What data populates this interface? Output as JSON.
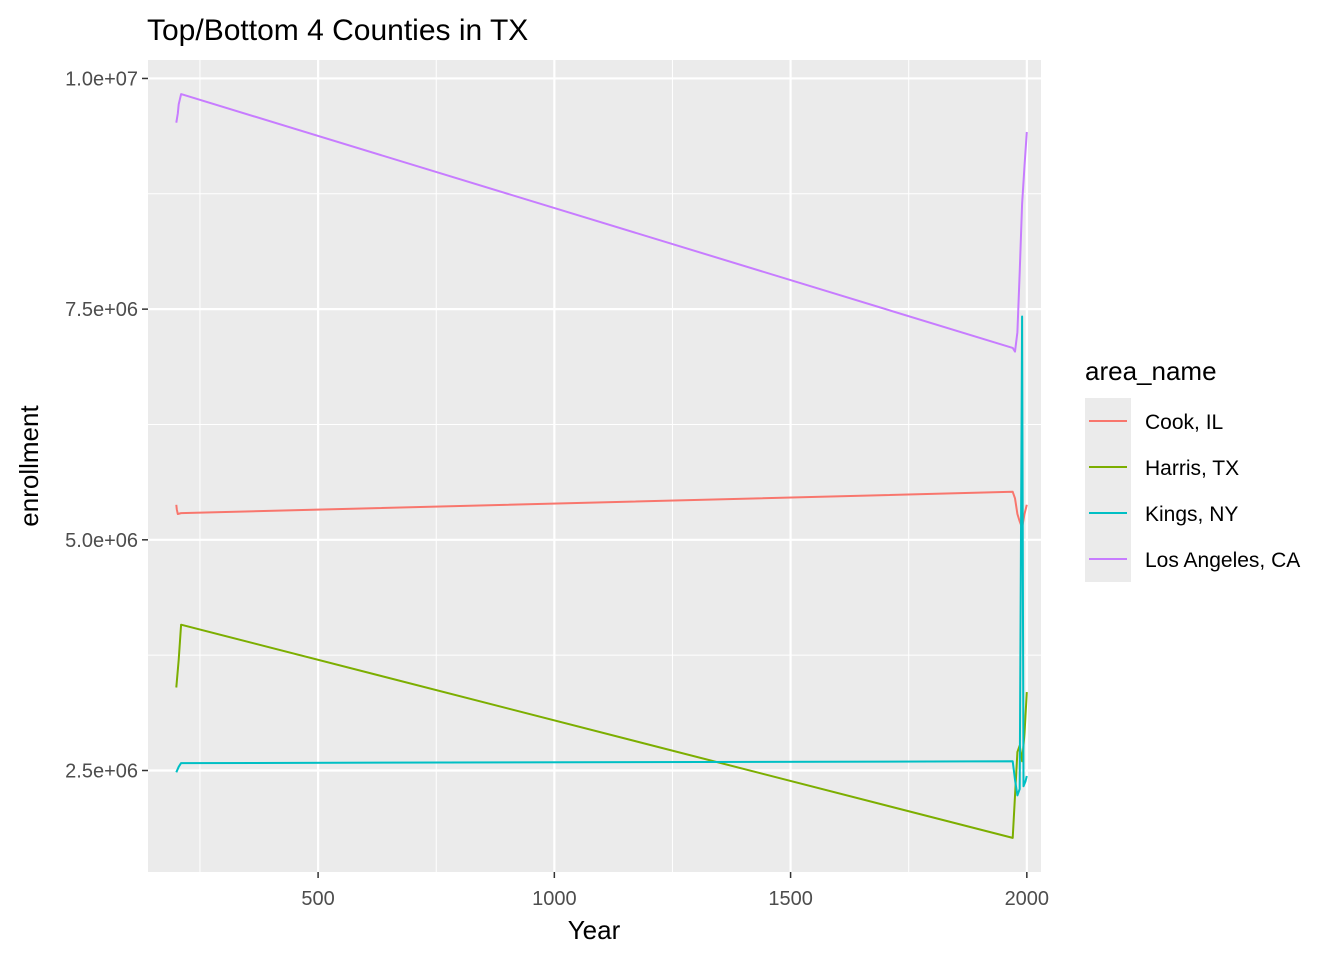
{
  "chart_data": {
    "type": "line",
    "title": "Top/Bottom 4 Counties in TX",
    "xlabel": "Year",
    "ylabel": "enrollment",
    "xlim": [
      140,
      2030
    ],
    "ylim": [
      1400000,
      10200000
    ],
    "x_ticks": [
      500,
      1000,
      1500,
      2000
    ],
    "x_tick_labels": [
      "500",
      "1000",
      "1500",
      "2000"
    ],
    "y_ticks": [
      2500000,
      5000000,
      7500000,
      10000000
    ],
    "y_tick_labels": [
      "2.5e+06",
      "5.0e+06",
      "7.5e+06",
      "1.0e+07"
    ],
    "grid": true,
    "legend": {
      "title": "area_name",
      "position": "right"
    },
    "series": [
      {
        "name": "Cook, IL",
        "color": "#F8766D",
        "points": [
          [
            200,
            5380000
          ],
          [
            201,
            5330000
          ],
          [
            203,
            5280000
          ],
          [
            210,
            5290000
          ],
          [
            1970,
            5520000
          ],
          [
            1975,
            5450000
          ],
          [
            1980,
            5280000
          ],
          [
            1985,
            5200000
          ],
          [
            1990,
            5130000
          ],
          [
            1995,
            5280000
          ],
          [
            2000,
            5380000
          ]
        ]
      },
      {
        "name": "Harris, TX",
        "color": "#7CAE00",
        "points": [
          [
            200,
            3400000
          ],
          [
            205,
            3700000
          ],
          [
            210,
            4080000
          ],
          [
            1970,
            1770000
          ],
          [
            1980,
            2700000
          ],
          [
            1985,
            2770000
          ],
          [
            1990,
            2600000
          ],
          [
            1995,
            2900000
          ],
          [
            2000,
            3350000
          ]
        ]
      },
      {
        "name": "Kings, NY",
        "color": "#00BFC4",
        "points": [
          [
            200,
            2480000
          ],
          [
            205,
            2540000
          ],
          [
            210,
            2580000
          ],
          [
            1970,
            2600000
          ],
          [
            1975,
            2400000
          ],
          [
            1980,
            2230000
          ],
          [
            1985,
            2300000
          ],
          [
            1990,
            7420000
          ],
          [
            1993,
            2330000
          ],
          [
            1997,
            2380000
          ],
          [
            2000,
            2440000
          ]
        ]
      },
      {
        "name": "Los Angeles, CA",
        "color": "#C77CFF",
        "points": [
          [
            200,
            9520000
          ],
          [
            203,
            9620000
          ],
          [
            205,
            9720000
          ],
          [
            210,
            9830000
          ],
          [
            1970,
            7080000
          ],
          [
            1975,
            7040000
          ],
          [
            1980,
            7250000
          ],
          [
            1985,
            7900000
          ],
          [
            1990,
            8640000
          ],
          [
            1995,
            9050000
          ],
          [
            2000,
            9420000
          ]
        ]
      }
    ]
  }
}
